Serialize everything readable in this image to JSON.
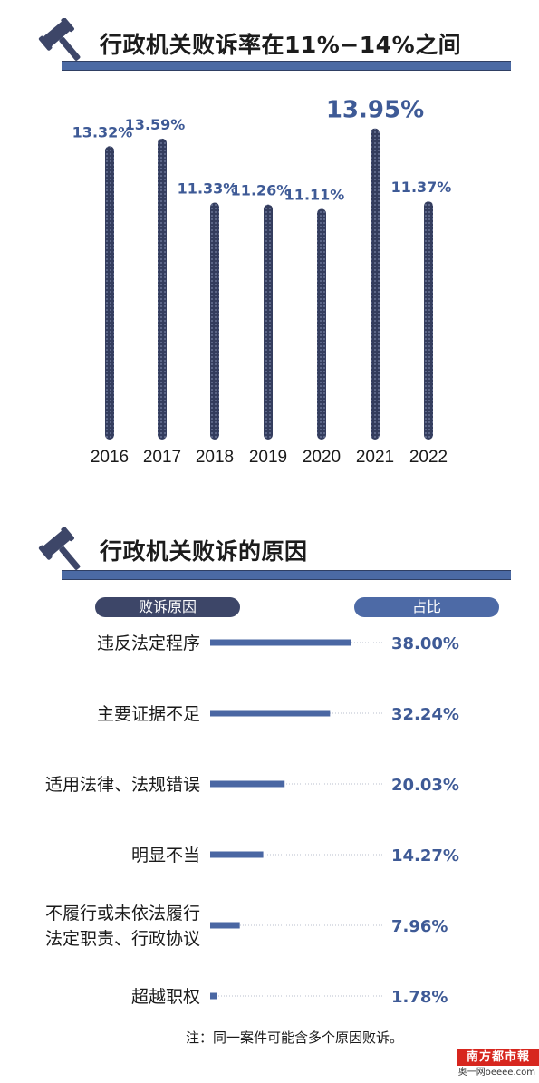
{
  "section1": {
    "title": "行政机关败诉率在11%−14%之间"
  },
  "section2": {
    "title": "行政机关败诉的原因",
    "col_reason": "败诉原因",
    "col_share": "占比"
  },
  "note": "注：同一案件可能含多个原因败诉。",
  "badge": {
    "top": "南方都市報",
    "bottom": "奥一网oeeee.com"
  },
  "colors": {
    "bar_dark": "#343d5e",
    "accent": "#4a67a3",
    "label": "#3e5a96",
    "pill_dark": "#3d4668"
  },
  "icons": [
    "gavel-icon",
    "gavel-icon"
  ],
  "chart_data": [
    {
      "type": "bar",
      "title": "行政机关败诉率在11%−14%之间",
      "categories": [
        "2016",
        "2017",
        "2018",
        "2019",
        "2020",
        "2021",
        "2022"
      ],
      "values": [
        13.32,
        13.59,
        11.33,
        11.26,
        11.11,
        13.95,
        11.37
      ],
      "labels": [
        "13.32%",
        "13.59%",
        "11.33%",
        "11.26%",
        "11.11%",
        "13.95%",
        "11.37%"
      ],
      "highlight": "2021",
      "xlabel": "",
      "ylabel": "",
      "grid": false
    },
    {
      "type": "bar",
      "orientation": "horizontal",
      "title": "行政机关败诉的原因",
      "categories": [
        [
          "违反法定程序"
        ],
        [
          "主要证据不足"
        ],
        [
          "适用法律、法规错误"
        ],
        [
          "明显不当"
        ],
        [
          "不履行或未依法履行",
          "法定职责、行政协议"
        ],
        [
          "超越职权"
        ]
      ],
      "values": [
        38.0,
        32.24,
        20.03,
        14.27,
        7.96,
        1.78
      ],
      "labels": [
        "38.00%",
        "32.24%",
        "20.03%",
        "14.27%",
        "7.96%",
        "1.78%"
      ],
      "xlim": [
        0,
        100
      ],
      "grid": false
    }
  ]
}
